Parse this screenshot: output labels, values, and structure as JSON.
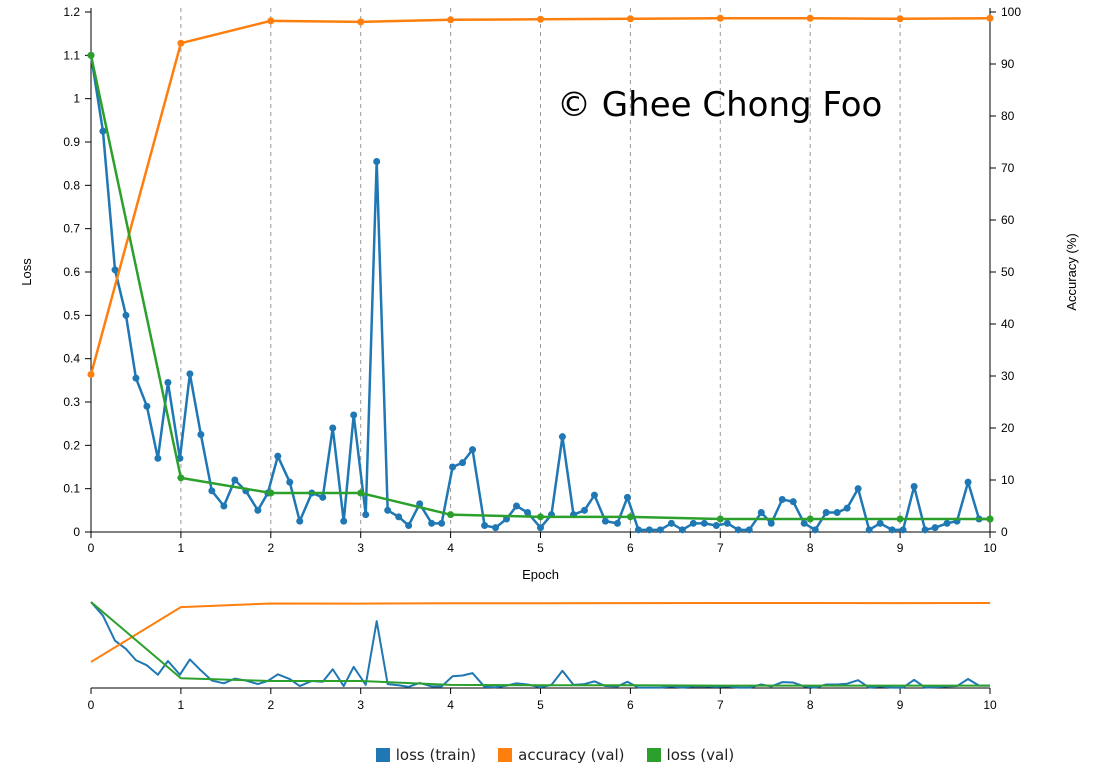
{
  "watermark": "© Ghee Chong Foo",
  "colors": {
    "loss_train": "#1f77b4",
    "accuracy_val": "#ff7f0e",
    "loss_val": "#2ca02c",
    "grid": "#999999"
  },
  "chart_data": [
    {
      "type": "line",
      "xlabel": "Epoch",
      "ylabel": "Loss",
      "y2label": "Accuracy (%)",
      "xlim": [
        0,
        10
      ],
      "ylim": [
        0,
        1.2
      ],
      "y2lim": [
        0,
        100
      ],
      "xticks": [
        0,
        1,
        2,
        3,
        4,
        5,
        6,
        7,
        8,
        9,
        10
      ],
      "yticks": [
        0,
        0.1,
        0.2,
        0.3,
        0.4,
        0.5,
        0.6,
        0.7,
        0.8,
        0.9,
        1,
        1.1,
        1.2
      ],
      "y2ticks": [
        0,
        10,
        20,
        30,
        40,
        50,
        60,
        70,
        80,
        90,
        100
      ],
      "grid": "vertical dashed at integer epochs",
      "legend": "bottom-center",
      "series": [
        {
          "name": "loss (train)",
          "axis": "left",
          "markers": true,
          "x": [
            0,
            0.133,
            0.267,
            0.389,
            0.5,
            0.622,
            0.744,
            0.856,
            0.989,
            1.1,
            1.222,
            1.344,
            1.478,
            1.6,
            1.722,
            1.856,
            1.967,
            2.078,
            2.211,
            2.322,
            2.456,
            2.578,
            2.689,
            2.811,
            2.922,
            3.056,
            3.178,
            3.3,
            3.422,
            3.533,
            3.656,
            3.789,
            3.9,
            4.022,
            4.133,
            4.244,
            4.378,
            4.5,
            4.622,
            4.733,
            4.856,
            5.0,
            5.122,
            5.244,
            5.367,
            5.489,
            5.6,
            5.722,
            5.856,
            5.967,
            6.089,
            6.211,
            6.333,
            6.456,
            6.578,
            6.7,
            6.822,
            6.956,
            7.078,
            7.2,
            7.322,
            7.456,
            7.567,
            7.689,
            7.811,
            7.933,
            8.056,
            8.178,
            8.3,
            8.411,
            8.533,
            8.656,
            8.778,
            8.911,
            9.033,
            9.156,
            9.278,
            9.389,
            9.522,
            9.633,
            9.756,
            9.878,
            10
          ],
          "y": [
            1.1,
            0.925,
            0.605,
            0.5,
            0.355,
            0.29,
            0.17,
            0.345,
            0.17,
            0.365,
            0.225,
            0.095,
            0.06,
            0.12,
            0.095,
            0.05,
            0.09,
            0.175,
            0.115,
            0.025,
            0.09,
            0.08,
            0.24,
            0.025,
            0.27,
            0.04,
            0.855,
            0.05,
            0.035,
            0.015,
            0.065,
            0.02,
            0.02,
            0.15,
            0.16,
            0.19,
            0.015,
            0.01,
            0.03,
            0.06,
            0.045,
            0.01,
            0.04,
            0.22,
            0.04,
            0.05,
            0.085,
            0.025,
            0.02,
            0.08,
            0.005,
            0.005,
            0.005,
            0.02,
            0.005,
            0.02,
            0.02,
            0.015,
            0.02,
            0.005,
            0.005,
            0.045,
            0.02,
            0.075,
            0.07,
            0.02,
            0.005,
            0.045,
            0.045,
            0.055,
            0.1,
            0.005,
            0.02,
            0.005,
            0.005,
            0.105,
            0.005,
            0.01,
            0.02,
            0.025,
            0.115,
            0.03,
            0.03
          ]
        },
        {
          "name": "accuracy (val)",
          "axis": "right",
          "markers": true,
          "x": [
            0,
            1,
            2,
            3,
            4,
            5,
            6,
            7,
            8,
            9,
            10
          ],
          "y": [
            30.3,
            94.0,
            98.3,
            98.1,
            98.5,
            98.6,
            98.7,
            98.8,
            98.8,
            98.7,
            98.8
          ]
        },
        {
          "name": "loss (val)",
          "axis": "left",
          "markers": true,
          "x": [
            0,
            1,
            2,
            3,
            4,
            5,
            6,
            7,
            8,
            9,
            10
          ],
          "y": [
            1.1,
            0.125,
            0.09,
            0.09,
            0.04,
            0.035,
            0.035,
            0.03,
            0.03,
            0.03,
            0.03
          ]
        }
      ]
    },
    {
      "type": "line",
      "role": "overview-brush",
      "xlim": [
        0,
        10
      ],
      "xticks": [
        0,
        1,
        2,
        3,
        4,
        5,
        6,
        7,
        8,
        9,
        10
      ],
      "series_ref": [
        "loss (train)",
        "accuracy (val)",
        "loss (val)"
      ],
      "markers": false
    }
  ],
  "legend": {
    "items": [
      {
        "label": "loss (train)",
        "color": "#1f77b4"
      },
      {
        "label": "accuracy (val)",
        "color": "#ff7f0e"
      },
      {
        "label": "loss (val)",
        "color": "#2ca02c"
      }
    ]
  }
}
